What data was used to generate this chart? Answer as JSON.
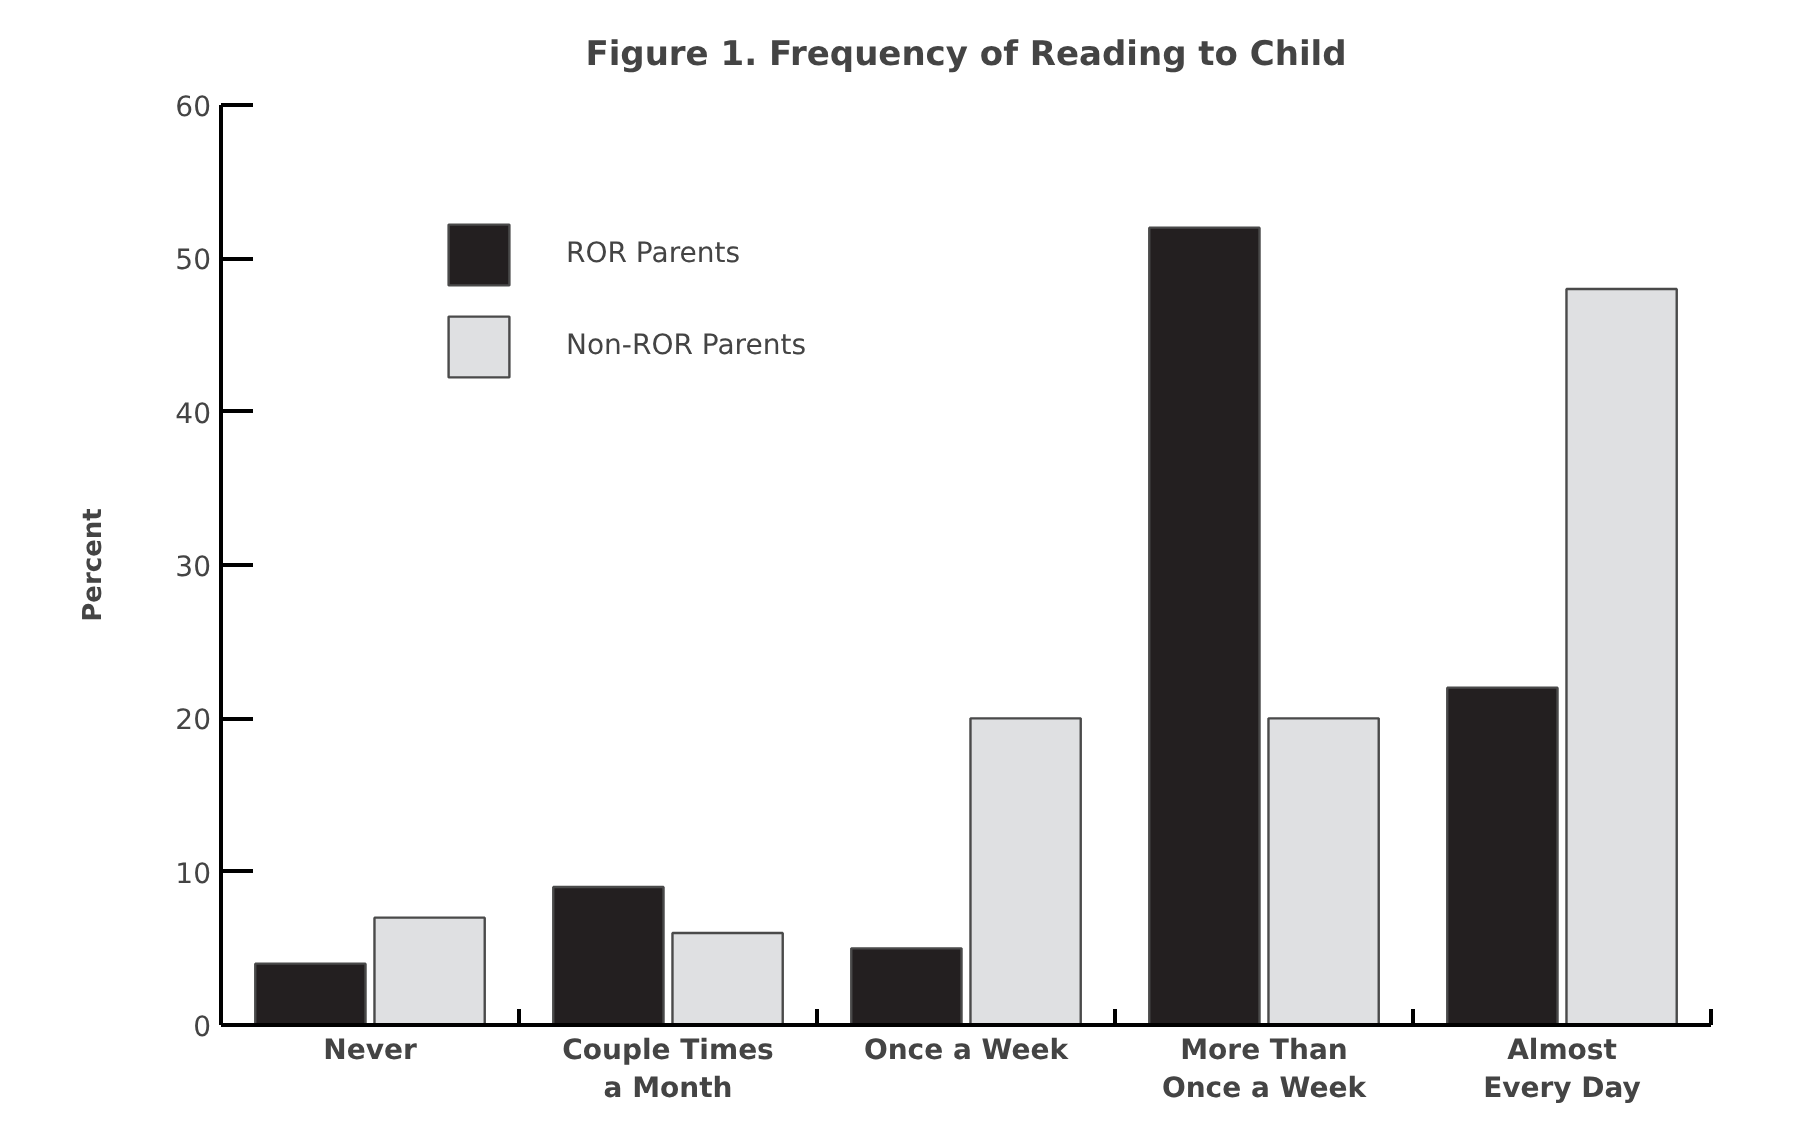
{
  "chart_data": {
    "type": "bar",
    "title": "Figure 1. Frequency of Reading to Child",
    "ylabel": "Percent",
    "categories": [
      "Never",
      "Couple Times\na Month",
      "Once a Week",
      "More Than\nOnce a Week",
      "Almost\nEvery Day"
    ],
    "series": [
      {
        "name": "ROR Parents",
        "color": "#231f20",
        "values": [
          4,
          9,
          5,
          52,
          22
        ]
      },
      {
        "name": "Non-ROR Parents",
        "color": "#dfe0e2",
        "values": [
          7,
          6,
          20,
          20,
          48
        ]
      }
    ],
    "ylim": [
      0,
      60
    ],
    "yticks": [
      0,
      10,
      20,
      30,
      40,
      50,
      60
    ],
    "legend": "top left",
    "grid": false
  }
}
